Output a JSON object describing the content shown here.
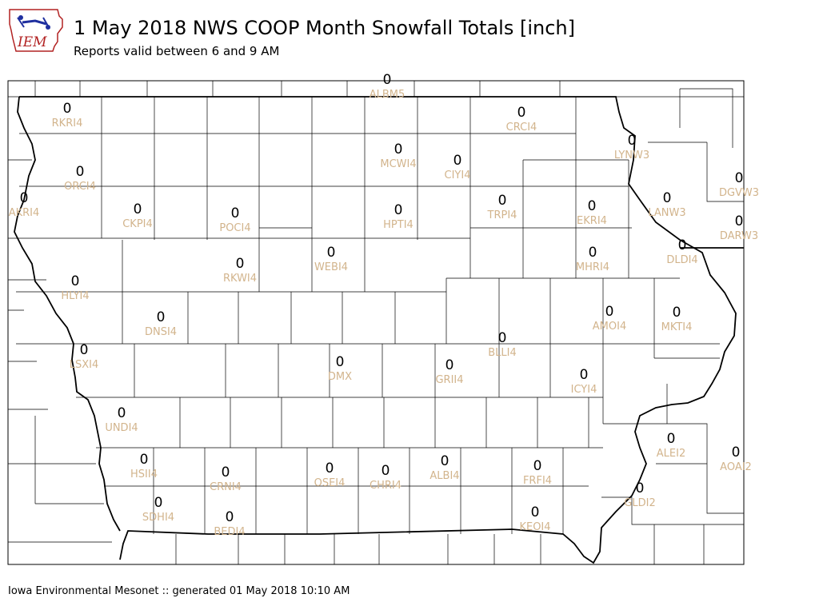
{
  "header": {
    "logo_text": "IEM",
    "title": "1 May 2018 NWS COOP Month Snowfall Totals [inch]",
    "subtitle": "Reports valid between 6 and 9 AM"
  },
  "footer": {
    "text": "Iowa Environmental Mesonet :: generated 01 May 2018 10:10 AM"
  },
  "colors": {
    "station_label": "#d2b48c",
    "value_label": "#000000",
    "border": "#000000",
    "logo_red": "#b22222",
    "logo_blue": "#1f2f9f"
  },
  "stations": [
    {
      "id": "ALBM5",
      "value": "0"
    },
    {
      "id": "RKRI4",
      "value": "0"
    },
    {
      "id": "CRCI4",
      "value": "0"
    },
    {
      "id": "LYNW3",
      "value": "0"
    },
    {
      "id": "MCWI4",
      "value": "0"
    },
    {
      "id": "CIYI4",
      "value": "0"
    },
    {
      "id": "ORCI4",
      "value": "0"
    },
    {
      "id": "DGVW3",
      "value": "0"
    },
    {
      "id": "AKRI4",
      "value": "0"
    },
    {
      "id": "CKPI4",
      "value": "0"
    },
    {
      "id": "POCI4",
      "value": "0"
    },
    {
      "id": "HPTI4",
      "value": "0"
    },
    {
      "id": "TRPI4",
      "value": "0"
    },
    {
      "id": "EKRI4",
      "value": "0"
    },
    {
      "id": "LANW3",
      "value": "0"
    },
    {
      "id": "DARW3",
      "value": "0"
    },
    {
      "id": "DLDI4",
      "value": "0"
    },
    {
      "id": "RKWI4",
      "value": "0"
    },
    {
      "id": "WEBI4",
      "value": "0"
    },
    {
      "id": "MHRI4",
      "value": "0"
    },
    {
      "id": "HLYI4",
      "value": "0"
    },
    {
      "id": "AMOI4",
      "value": "0"
    },
    {
      "id": "MKTI4",
      "value": "0"
    },
    {
      "id": "DNSI4",
      "value": "0"
    },
    {
      "id": "BLLI4",
      "value": "0"
    },
    {
      "id": "LSXI4",
      "value": "0"
    },
    {
      "id": "DMX",
      "value": "0"
    },
    {
      "id": "GRII4",
      "value": "0"
    },
    {
      "id": "ICYI4",
      "value": "0"
    },
    {
      "id": "UNDI4",
      "value": "0"
    },
    {
      "id": "ALEI2",
      "value": "0"
    },
    {
      "id": "HSII4",
      "value": "0"
    },
    {
      "id": "CRNI4",
      "value": "0"
    },
    {
      "id": "OSEI4",
      "value": "0"
    },
    {
      "id": "CHRI4",
      "value": "0"
    },
    {
      "id": "ALBI4",
      "value": "0"
    },
    {
      "id": "FRFI4",
      "value": "0"
    },
    {
      "id": "AOAI2",
      "value": "0"
    },
    {
      "id": "GLDI2",
      "value": "0"
    },
    {
      "id": "SDHI4",
      "value": "0"
    },
    {
      "id": "BEDI4",
      "value": "0"
    },
    {
      "id": "KEOI4",
      "value": "0"
    }
  ]
}
